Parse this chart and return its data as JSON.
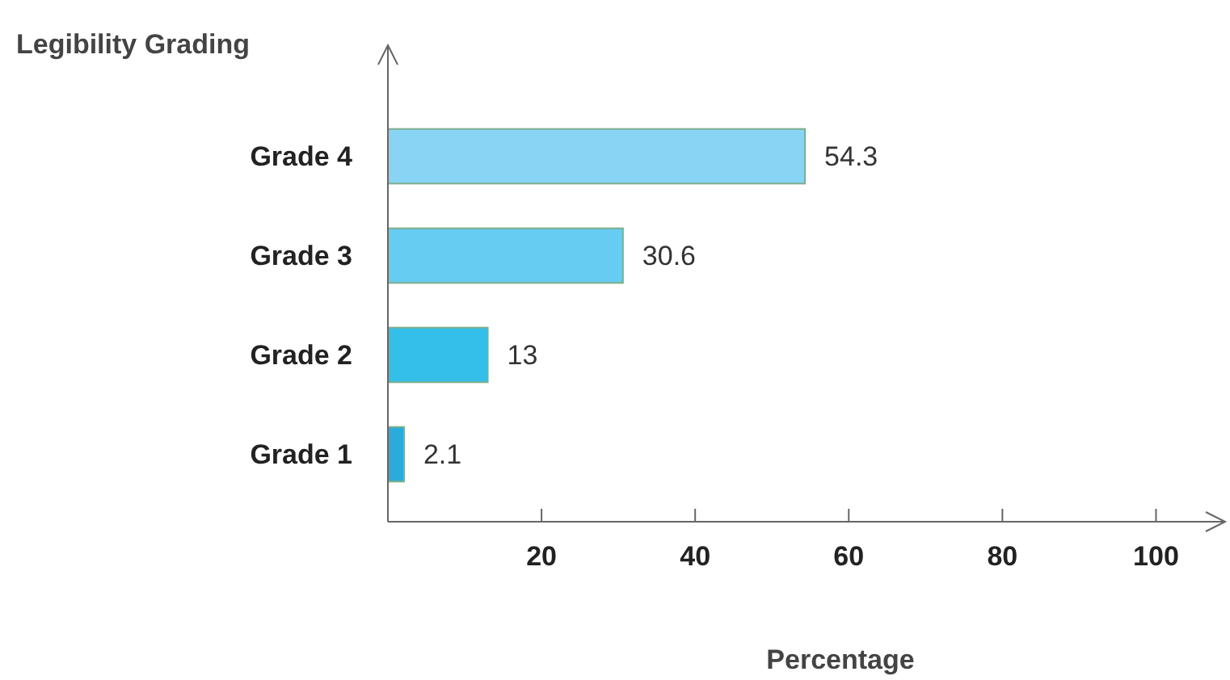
{
  "chart_data": {
    "type": "bar",
    "orientation": "horizontal",
    "ylabel": "Legibility Grading",
    "xlabel": "Percentage",
    "categories": [
      "Grade 4",
      "Grade 3",
      "Grade 2",
      "Grade 1"
    ],
    "values": [
      54.3,
      30.6,
      13,
      2.1
    ],
    "colors": [
      "#87d4f5",
      "#66ccf2",
      "#33bfea",
      "#29acdc"
    ],
    "xlim": [
      0,
      109
    ],
    "xticks": [
      20,
      40,
      60,
      80,
      100
    ],
    "data_labels": true
  }
}
